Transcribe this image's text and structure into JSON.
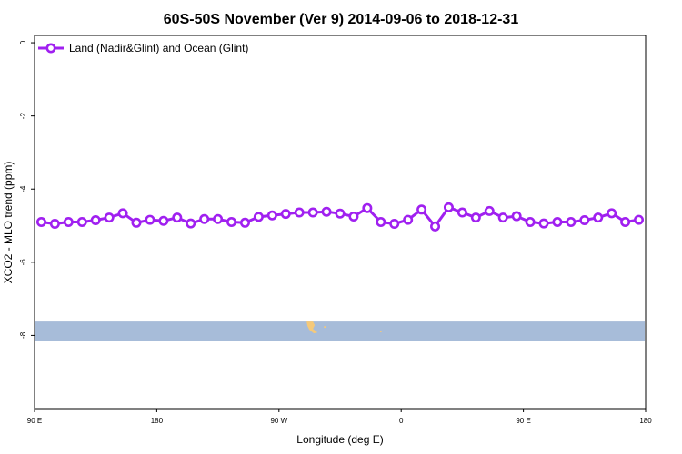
{
  "chart_data": {
    "type": "line",
    "title": "60S-50S November (Ver 9)   2014-09-06 to 2018-12-31",
    "xlabel": "Longitude (deg E)",
    "ylabel": "XCO2 - MLO trend (ppm)",
    "x_ticks": [
      {
        "value": 90,
        "label": "90 E"
      },
      {
        "value": 180,
        "label": "180"
      },
      {
        "value": 270,
        "label": "90 W"
      },
      {
        "value": 360,
        "label": "0"
      },
      {
        "value": 450,
        "label": "90 E"
      },
      {
        "value": 540,
        "label": "180"
      }
    ],
    "y_ticks": [
      {
        "value": 0,
        "label": "0"
      },
      {
        "value": -2,
        "label": "-2"
      },
      {
        "value": -4,
        "label": "-4"
      },
      {
        "value": -6,
        "label": "-6"
      },
      {
        "value": -8,
        "label": "-8"
      }
    ],
    "xlim": [
      90,
      540
    ],
    "ylim": [
      -10,
      0.2
    ],
    "grid": false,
    "legend_position": "top-left",
    "series": [
      {
        "name": "Land (Nadir&Glint) and Ocean (Glint)",
        "color": "#a020f0",
        "x": [
          95,
          105,
          115,
          125,
          135,
          145,
          155,
          165,
          175,
          185,
          195,
          205,
          215,
          225,
          235,
          245,
          255,
          265,
          275,
          285,
          295,
          305,
          315,
          325,
          335,
          345,
          355,
          365,
          375,
          385,
          395,
          405,
          415,
          425,
          435,
          445,
          455,
          465,
          475,
          485,
          495,
          505,
          515,
          525,
          535
        ],
        "values": [
          -4.9,
          -4.95,
          -4.9,
          -4.9,
          -4.85,
          -4.78,
          -4.66,
          -4.92,
          -4.84,
          -4.87,
          -4.78,
          -4.94,
          -4.82,
          -4.82,
          -4.9,
          -4.92,
          -4.76,
          -4.72,
          -4.68,
          -4.64,
          -4.64,
          -4.62,
          -4.67,
          -4.75,
          -4.52,
          -4.9,
          -4.95,
          -4.84,
          -4.56,
          -5.02,
          -4.5,
          -4.64,
          -4.78,
          -4.6,
          -4.78,
          -4.74,
          -4.9,
          -4.94,
          -4.9,
          -4.9,
          -4.85,
          -4.78,
          -4.66,
          -4.9,
          -4.84
        ]
      }
    ],
    "map_strip": {
      "y_range": [
        -8.15,
        -7.62
      ],
      "ocean_color": "#a7bcd9",
      "land_color": "#f5c97a"
    }
  }
}
